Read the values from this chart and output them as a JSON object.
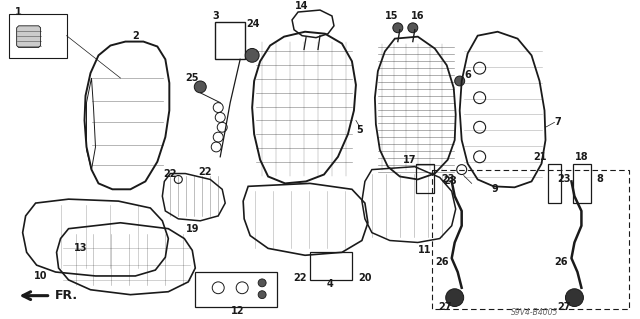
{
  "bg_color": "#ffffff",
  "line_color": "#1a1a1a",
  "fig_width": 6.4,
  "fig_height": 3.19,
  "dpi": 100,
  "diagram_code": "S9V4-B4005"
}
